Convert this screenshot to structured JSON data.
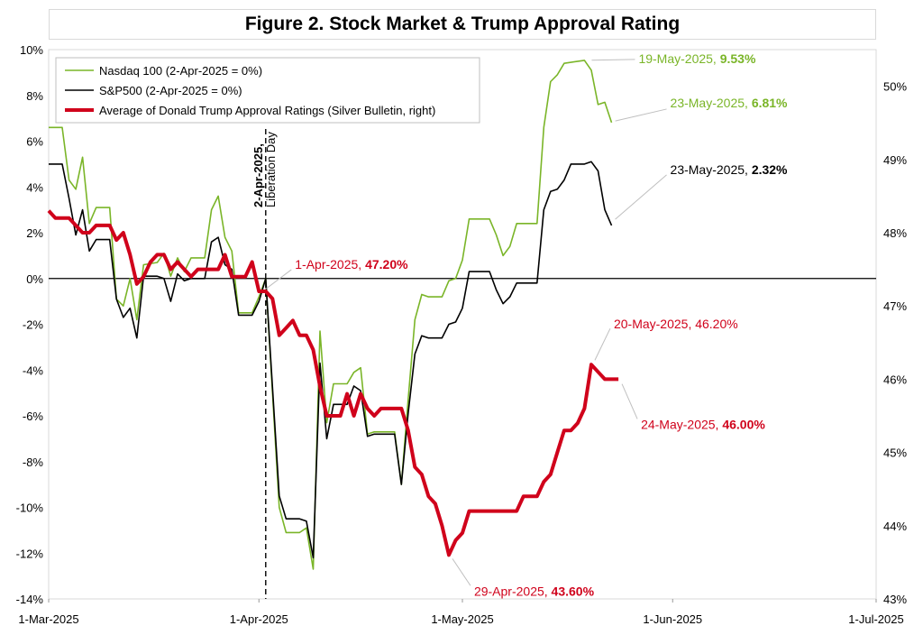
{
  "chart_data": {
    "type": "line",
    "title": "Figure 2. Stock Market & Trump Approval Rating",
    "x_ticks": [
      "1-Mar-2025",
      "1-Apr-2025",
      "1-May-2025",
      "1-Jun-2025",
      "1-Jul-2025"
    ],
    "x_range": [
      "2025-03-01",
      "2025-07-01"
    ],
    "y_left": {
      "range": [
        -14,
        10
      ],
      "ticks": [
        "10%",
        "8%",
        "6%",
        "4%",
        "2%",
        "0%",
        "-2%",
        "-4%",
        "-6%",
        "-8%",
        "-10%",
        "-12%",
        "-14%"
      ]
    },
    "y_right": {
      "range": [
        43,
        50.5
      ],
      "ticks": [
        "50%",
        "49%",
        "48%",
        "47%",
        "46%",
        "45%",
        "44%",
        "43%"
      ]
    },
    "legend_position": "top-left",
    "grid": "horizontal",
    "vline": {
      "date": "2025-04-02",
      "label_bold": "2-Apr-2025,",
      "label": "Liberation Day"
    },
    "series": [
      {
        "name": "Nasdaq 100 (2-Apr-2025 = 0%)",
        "axis": "left",
        "color": "#7ab528",
        "points": [
          [
            "2025-03-01",
            6.6
          ],
          [
            "2025-03-03",
            6.6
          ],
          [
            "2025-03-04",
            4.3
          ],
          [
            "2025-03-05",
            3.9
          ],
          [
            "2025-03-06",
            5.3
          ],
          [
            "2025-03-07",
            2.4
          ],
          [
            "2025-03-08",
            3.1
          ],
          [
            "2025-03-10",
            3.1
          ],
          [
            "2025-03-11",
            -0.9
          ],
          [
            "2025-03-12",
            -1.2
          ],
          [
            "2025-03-13",
            0.0
          ],
          [
            "2025-03-14",
            -1.8
          ],
          [
            "2025-03-15",
            0.6
          ],
          [
            "2025-03-17",
            0.7
          ],
          [
            "2025-03-18",
            1.1
          ],
          [
            "2025-03-19",
            0.1
          ],
          [
            "2025-03-20",
            0.9
          ],
          [
            "2025-03-21",
            0.3
          ],
          [
            "2025-03-22",
            0.9
          ],
          [
            "2025-03-24",
            0.9
          ],
          [
            "2025-03-25",
            3.0
          ],
          [
            "2025-03-26",
            3.6
          ],
          [
            "2025-03-27",
            1.8
          ],
          [
            "2025-03-28",
            1.2
          ],
          [
            "2025-03-29",
            -1.5
          ],
          [
            "2025-03-31",
            -1.5
          ],
          [
            "2025-04-01",
            -0.8
          ],
          [
            "2025-04-02",
            0.0
          ],
          [
            "2025-04-04",
            -10.0
          ],
          [
            "2025-04-05",
            -11.1
          ],
          [
            "2025-04-07",
            -11.1
          ],
          [
            "2025-04-08",
            -10.9
          ],
          [
            "2025-04-09",
            -12.7
          ],
          [
            "2025-04-10",
            -2.3
          ],
          [
            "2025-04-11",
            -6.3
          ],
          [
            "2025-04-12",
            -4.6
          ],
          [
            "2025-04-14",
            -4.6
          ],
          [
            "2025-04-15",
            -4.1
          ],
          [
            "2025-04-16",
            -3.9
          ],
          [
            "2025-04-17",
            -6.8
          ],
          [
            "2025-04-18",
            -6.7
          ],
          [
            "2025-04-21",
            -6.7
          ],
          [
            "2025-04-22",
            -9.0
          ],
          [
            "2025-04-23",
            -5.3
          ],
          [
            "2025-04-24",
            -1.8
          ],
          [
            "2025-04-25",
            -0.7
          ],
          [
            "2025-04-26",
            -0.8
          ],
          [
            "2025-04-28",
            -0.8
          ],
          [
            "2025-04-29",
            -0.1
          ],
          [
            "2025-04-30",
            0.0
          ],
          [
            "2025-05-01",
            0.8
          ],
          [
            "2025-05-02",
            2.6
          ],
          [
            "2025-05-05",
            2.6
          ],
          [
            "2025-05-06",
            1.9
          ],
          [
            "2025-05-07",
            1.0
          ],
          [
            "2025-05-08",
            1.4
          ],
          [
            "2025-05-09",
            2.4
          ],
          [
            "2025-05-12",
            2.4
          ],
          [
            "2025-05-13",
            6.6
          ],
          [
            "2025-05-14",
            8.6
          ],
          [
            "2025-05-15",
            8.9
          ],
          [
            "2025-05-16",
            9.4
          ],
          [
            "2025-05-19",
            9.53
          ],
          [
            "2025-05-20",
            9.1
          ],
          [
            "2025-05-21",
            7.6
          ],
          [
            "2025-05-22",
            7.7
          ],
          [
            "2025-05-23",
            6.81
          ]
        ]
      },
      {
        "name": "S&P500 (2-Apr-2025 = 0%)",
        "axis": "left",
        "color": "#000000",
        "points": [
          [
            "2025-03-01",
            5.0
          ],
          [
            "2025-03-03",
            5.0
          ],
          [
            "2025-03-04",
            3.5
          ],
          [
            "2025-03-05",
            1.9
          ],
          [
            "2025-03-06",
            3.0
          ],
          [
            "2025-03-07",
            1.2
          ],
          [
            "2025-03-08",
            1.7
          ],
          [
            "2025-03-10",
            1.7
          ],
          [
            "2025-03-11",
            -0.9
          ],
          [
            "2025-03-12",
            -1.7
          ],
          [
            "2025-03-13",
            -1.3
          ],
          [
            "2025-03-14",
            -2.6
          ],
          [
            "2025-03-15",
            0.1
          ],
          [
            "2025-03-17",
            0.1
          ],
          [
            "2025-03-18",
            0.0
          ],
          [
            "2025-03-19",
            -1.0
          ],
          [
            "2025-03-20",
            0.2
          ],
          [
            "2025-03-21",
            -0.1
          ],
          [
            "2025-03-22",
            0.0
          ],
          [
            "2025-03-24",
            0.0
          ],
          [
            "2025-03-25",
            1.6
          ],
          [
            "2025-03-26",
            1.8
          ],
          [
            "2025-03-27",
            0.6
          ],
          [
            "2025-03-28",
            0.4
          ],
          [
            "2025-03-29",
            -1.6
          ],
          [
            "2025-03-31",
            -1.6
          ],
          [
            "2025-04-01",
            -1.0
          ],
          [
            "2025-04-02",
            0.0
          ],
          [
            "2025-04-04",
            -9.5
          ],
          [
            "2025-04-05",
            -10.5
          ],
          [
            "2025-04-07",
            -10.5
          ],
          [
            "2025-04-08",
            -10.6
          ],
          [
            "2025-04-09",
            -12.2
          ],
          [
            "2025-04-10",
            -3.7
          ],
          [
            "2025-04-11",
            -7.0
          ],
          [
            "2025-04-12",
            -5.5
          ],
          [
            "2025-04-14",
            -5.5
          ],
          [
            "2025-04-15",
            -4.7
          ],
          [
            "2025-04-16",
            -4.9
          ],
          [
            "2025-04-17",
            -6.9
          ],
          [
            "2025-04-18",
            -6.8
          ],
          [
            "2025-04-21",
            -6.8
          ],
          [
            "2025-04-22",
            -9.0
          ],
          [
            "2025-04-23",
            -5.9
          ],
          [
            "2025-04-24",
            -3.3
          ],
          [
            "2025-04-25",
            -2.5
          ],
          [
            "2025-04-26",
            -2.6
          ],
          [
            "2025-04-28",
            -2.6
          ],
          [
            "2025-04-29",
            -2.0
          ],
          [
            "2025-04-30",
            -1.9
          ],
          [
            "2025-05-01",
            -1.3
          ],
          [
            "2025-05-02",
            0.3
          ],
          [
            "2025-05-05",
            0.3
          ],
          [
            "2025-05-06",
            -0.5
          ],
          [
            "2025-05-07",
            -1.1
          ],
          [
            "2025-05-08",
            -0.8
          ],
          [
            "2025-05-09",
            -0.2
          ],
          [
            "2025-05-12",
            -0.2
          ],
          [
            "2025-05-13",
            3.0
          ],
          [
            "2025-05-14",
            3.8
          ],
          [
            "2025-05-15",
            3.9
          ],
          [
            "2025-05-16",
            4.3
          ],
          [
            "2025-05-17",
            5.0
          ],
          [
            "2025-05-19",
            5.0
          ],
          [
            "2025-05-20",
            5.1
          ],
          [
            "2025-05-21",
            4.7
          ],
          [
            "2025-05-22",
            3.0
          ],
          [
            "2025-05-22",
            3.0
          ],
          [
            "2025-05-23",
            2.32
          ]
        ]
      },
      {
        "name": "Average of Donald Trump Approval Ratings (Silver Bulletin, right)",
        "axis": "right",
        "color": "#d0021b",
        "points": [
          [
            "2025-03-01",
            48.3
          ],
          [
            "2025-03-02",
            48.2
          ],
          [
            "2025-03-03",
            48.2
          ],
          [
            "2025-03-04",
            48.2
          ],
          [
            "2025-03-05",
            48.1
          ],
          [
            "2025-03-06",
            48.0
          ],
          [
            "2025-03-07",
            48.0
          ],
          [
            "2025-03-08",
            48.1
          ],
          [
            "2025-03-09",
            48.1
          ],
          [
            "2025-03-10",
            48.1
          ],
          [
            "2025-03-11",
            47.9
          ],
          [
            "2025-03-12",
            48.0
          ],
          [
            "2025-03-13",
            47.7
          ],
          [
            "2025-03-14",
            47.3
          ],
          [
            "2025-03-15",
            47.4
          ],
          [
            "2025-03-16",
            47.6
          ],
          [
            "2025-03-17",
            47.7
          ],
          [
            "2025-03-18",
            47.7
          ],
          [
            "2025-03-19",
            47.5
          ],
          [
            "2025-03-20",
            47.6
          ],
          [
            "2025-03-21",
            47.5
          ],
          [
            "2025-03-22",
            47.4
          ],
          [
            "2025-03-23",
            47.5
          ],
          [
            "2025-03-24",
            47.5
          ],
          [
            "2025-03-25",
            47.5
          ],
          [
            "2025-03-26",
            47.5
          ],
          [
            "2025-03-27",
            47.7
          ],
          [
            "2025-03-28",
            47.4
          ],
          [
            "2025-03-29",
            47.4
          ],
          [
            "2025-03-30",
            47.4
          ],
          [
            "2025-03-31",
            47.6
          ],
          [
            "2025-04-01",
            47.2
          ],
          [
            "2025-04-02",
            47.2
          ],
          [
            "2025-04-03",
            47.1
          ],
          [
            "2025-04-04",
            46.6
          ],
          [
            "2025-04-05",
            46.7
          ],
          [
            "2025-04-06",
            46.8
          ],
          [
            "2025-04-07",
            46.6
          ],
          [
            "2025-04-08",
            46.6
          ],
          [
            "2025-04-09",
            46.4
          ],
          [
            "2025-04-10",
            45.9
          ],
          [
            "2025-04-11",
            45.5
          ],
          [
            "2025-04-12",
            45.5
          ],
          [
            "2025-04-13",
            45.5
          ],
          [
            "2025-04-14",
            45.8
          ],
          [
            "2025-04-15",
            45.5
          ],
          [
            "2025-04-16",
            45.8
          ],
          [
            "2025-04-17",
            45.6
          ],
          [
            "2025-04-18",
            45.5
          ],
          [
            "2025-04-19",
            45.6
          ],
          [
            "2025-04-20",
            45.6
          ],
          [
            "2025-04-21",
            45.6
          ],
          [
            "2025-04-22",
            45.6
          ],
          [
            "2025-04-23",
            45.3
          ],
          [
            "2025-04-24",
            44.8
          ],
          [
            "2025-04-25",
            44.7
          ],
          [
            "2025-04-26",
            44.4
          ],
          [
            "2025-04-27",
            44.3
          ],
          [
            "2025-04-28",
            44.0
          ],
          [
            "2025-04-29",
            43.6
          ],
          [
            "2025-04-30",
            43.8
          ],
          [
            "2025-05-01",
            43.9
          ],
          [
            "2025-05-02",
            44.2
          ],
          [
            "2025-05-03",
            44.2
          ],
          [
            "2025-05-04",
            44.2
          ],
          [
            "2025-05-05",
            44.2
          ],
          [
            "2025-05-06",
            44.2
          ],
          [
            "2025-05-07",
            44.2
          ],
          [
            "2025-05-08",
            44.2
          ],
          [
            "2025-05-09",
            44.2
          ],
          [
            "2025-05-10",
            44.4
          ],
          [
            "2025-05-11",
            44.4
          ],
          [
            "2025-05-12",
            44.4
          ],
          [
            "2025-05-13",
            44.6
          ],
          [
            "2025-05-14",
            44.7
          ],
          [
            "2025-05-15",
            45.0
          ],
          [
            "2025-05-16",
            45.3
          ],
          [
            "2025-05-17",
            45.3
          ],
          [
            "2025-05-18",
            45.4
          ],
          [
            "2025-05-19",
            45.6
          ],
          [
            "2025-05-20",
            46.2
          ],
          [
            "2025-05-21",
            46.1
          ],
          [
            "2025-05-22",
            46.0
          ],
          [
            "2025-05-23",
            46.0
          ],
          [
            "2025-05-24",
            46.0
          ]
        ]
      }
    ],
    "annotations": [
      {
        "date": "2025-05-19",
        "value": 9.53,
        "axis": "left",
        "color": "#7ab528",
        "text": "19-May-2025, ",
        "bold": "9.53%"
      },
      {
        "date": "2025-05-23",
        "value": 6.81,
        "axis": "left",
        "color": "#7ab528",
        "text": "23-May-2025, ",
        "bold": "6.81%"
      },
      {
        "date": "2025-05-23",
        "value": 2.32,
        "axis": "left",
        "color": "#000000",
        "text": "23-May-2025, ",
        "bold": "2.32%"
      },
      {
        "date": "2025-04-01",
        "value": 47.2,
        "axis": "right",
        "color": "#d0021b",
        "text": "1-Apr-2025, ",
        "bold": "47.20%"
      },
      {
        "date": "2025-05-20",
        "value": 46.2,
        "axis": "right",
        "color": "#d0021b",
        "text": "20-May-2025, 46.20%",
        "bold": ""
      },
      {
        "date": "2025-05-24",
        "value": 46.0,
        "axis": "right",
        "color": "#d0021b",
        "text": "24-May-2025, ",
        "bold": "46.00%"
      },
      {
        "date": "2025-04-29",
        "value": 43.6,
        "axis": "right",
        "color": "#d0021b",
        "text": "29-Apr-2025, ",
        "bold": "43.60%"
      }
    ]
  }
}
